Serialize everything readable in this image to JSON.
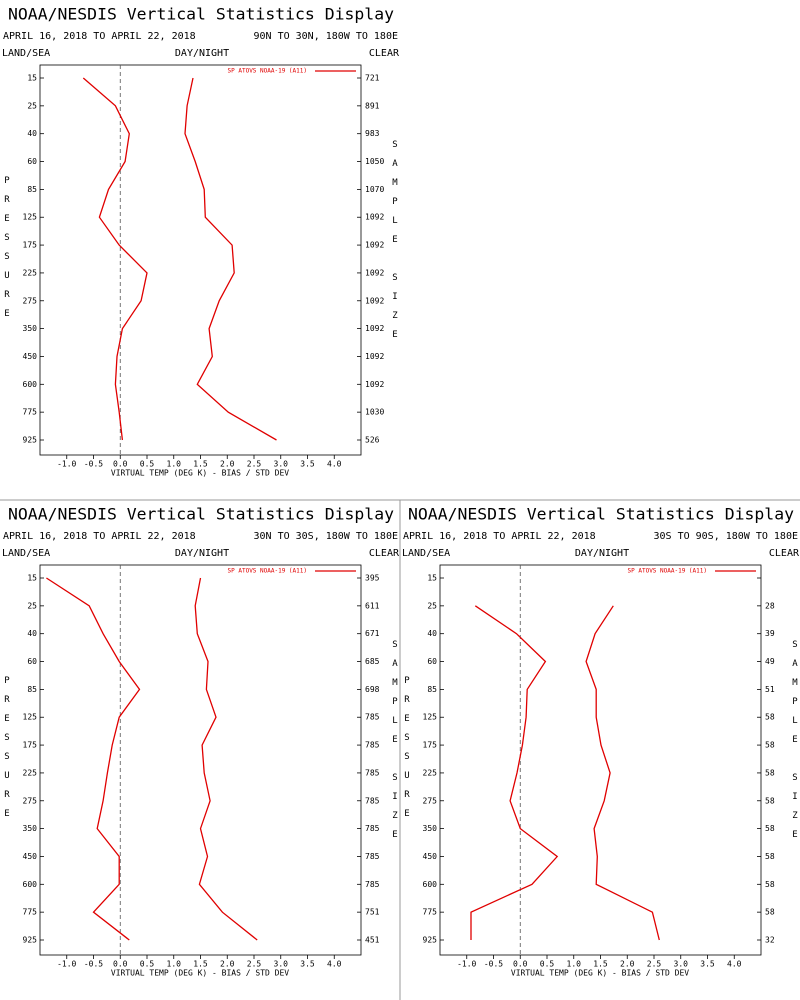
{
  "chart_data": [
    {
      "type": "line",
      "title": "NOAA/NESDIS Vertical Statistics Display",
      "subtitle": "APRIL 16, 2018 TO APRIL 22, 2018",
      "region": "90N TO 30N, 180W TO 180E",
      "land_sea": "LAND/SEA",
      "day_night": "DAY/NIGHT",
      "clear": "CLEAR",
      "y_label": "PRESSURE",
      "y2_label": "SAMPLE SIZE",
      "x_label": "VIRTUAL TEMP (DEG K) - BIAS / STD DEV",
      "legend": "SP ATOVS NOAA-19 (A11)",
      "color": "#e00000",
      "categories": [
        15,
        25,
        40,
        60,
        85,
        125,
        175,
        225,
        275,
        350,
        450,
        600,
        775,
        925
      ],
      "sample_sizes": [
        721,
        891,
        983,
        1050,
        1070,
        1092,
        1092,
        1092,
        1092,
        1092,
        1092,
        1092,
        1030,
        526
      ],
      "series": [
        {
          "values": [
            -0.69,
            -0.09,
            0.17,
            0.09,
            -0.22,
            -0.39,
            -0.02,
            0.5,
            0.39,
            0.04,
            -0.06,
            -0.09,
            -0.02,
            0.04
          ]
        },
        {
          "values": [
            1.36,
            1.25,
            1.21,
            1.4,
            1.57,
            1.59,
            2.09,
            2.13,
            1.85,
            1.66,
            1.72,
            1.44,
            2.02,
            2.92
          ]
        }
      ],
      "xlim": [
        -1.5,
        4.5
      ],
      "xticks": [
        {
          "value": -1,
          "label": "-1.0"
        },
        -0.5,
        {
          "value": 0,
          "label": "0.0"
        },
        0.5,
        {
          "value": 1,
          "label": "1.0"
        },
        1.5,
        {
          "value": 2,
          "label": "2.0"
        },
        2.5,
        {
          "value": 3,
          "label": "3.0"
        },
        3.5,
        {
          "value": 4,
          "label": "4.0"
        }
      ]
    },
    {
      "type": "line",
      "title": "NOAA/NESDIS Vertical Statistics Display",
      "subtitle": "APRIL 16, 2018 TO APRIL 22, 2018",
      "region": "30N TO 30S, 180W TO 180E",
      "land_sea": "LAND/SEA",
      "day_night": "DAY/NIGHT",
      "clear": "CLEAR",
      "y_label": "PRESSURE",
      "y2_label": "SAMPLE SIZE",
      "x_label": "VIRTUAL TEMP (DEG K) - BIAS / STD DEV",
      "legend": "SP ATOVS NOAA-19 (A11)",
      "color": "#e00000",
      "categories": [
        15,
        25,
        40,
        60,
        85,
        125,
        175,
        225,
        275,
        350,
        450,
        600,
        775,
        925
      ],
      "sample_sizes": [
        395,
        611,
        671,
        685,
        698,
        785,
        785,
        785,
        785,
        785,
        785,
        785,
        751,
        451
      ],
      "series": [
        {
          "values": [
            -1.38,
            -0.58,
            -0.32,
            -0.02,
            0.36,
            -0.02,
            -0.15,
            -0.24,
            -0.32,
            -0.43,
            -0.02,
            -0.02,
            -0.5,
            0.17
          ]
        },
        {
          "values": [
            1.5,
            1.4,
            1.44,
            1.64,
            1.61,
            1.79,
            1.53,
            1.57,
            1.68,
            1.5,
            1.63,
            1.48,
            1.91,
            2.56
          ]
        }
      ],
      "xlim": [
        -1.5,
        4.5
      ],
      "xticks": [
        {
          "value": -1,
          "label": "-1.0"
        },
        -0.5,
        {
          "value": 0,
          "label": "0.0"
        },
        0.5,
        {
          "value": 1,
          "label": "1.0"
        },
        1.5,
        {
          "value": 2,
          "label": "2.0"
        },
        2.5,
        {
          "value": 3,
          "label": "3.0"
        },
        3.5,
        {
          "value": 4,
          "label": "4.0"
        }
      ]
    },
    {
      "type": "line",
      "title": "NOAA/NESDIS Vertical Statistics Display",
      "subtitle": "APRIL 16, 2018 TO APRIL 22, 2018",
      "region": "30S TO 90S, 180W TO 180E",
      "land_sea": "LAND/SEA",
      "day_night": "DAY/NIGHT",
      "clear": "CLEAR",
      "y_label": "PRESSURE",
      "y2_label": "SAMPLE SIZE",
      "x_label": "VIRTUAL TEMP (DEG K) - BIAS / STD DEV",
      "legend": "SP ATOVS NOAA-19 (A11)",
      "color": "#e00000",
      "categories": [
        15,
        25,
        40,
        60,
        85,
        125,
        175,
        225,
        275,
        350,
        450,
        600,
        775,
        925
      ],
      "sample_sizes": [
        null,
        28,
        39,
        49,
        51,
        58,
        58,
        58,
        58,
        58,
        58,
        58,
        58,
        32
      ],
      "series": [
        {
          "values": [
            null,
            -0.84,
            -0.07,
            0.47,
            0.13,
            0.11,
            0.04,
            -0.06,
            -0.19,
            0,
            0.69,
            0.22,
            -0.92,
            -0.92
          ]
        },
        {
          "values": [
            null,
            1.74,
            1.4,
            1.23,
            1.42,
            1.42,
            1.51,
            1.68,
            1.57,
            1.38,
            1.44,
            1.42,
            2.47,
            2.6
          ]
        }
      ],
      "xlim": [
        -1.5,
        4.5
      ],
      "xticks": [
        {
          "value": -1,
          "label": "-1.0"
        },
        -0.5,
        {
          "value": 0,
          "label": "0.0"
        },
        0.5,
        {
          "value": 1,
          "label": "1.0"
        },
        1.5,
        {
          "value": 2,
          "label": "2.0"
        },
        2.5,
        {
          "value": 3,
          "label": "3.0"
        },
        3.5,
        {
          "value": 4,
          "label": "4.0"
        }
      ]
    }
  ]
}
